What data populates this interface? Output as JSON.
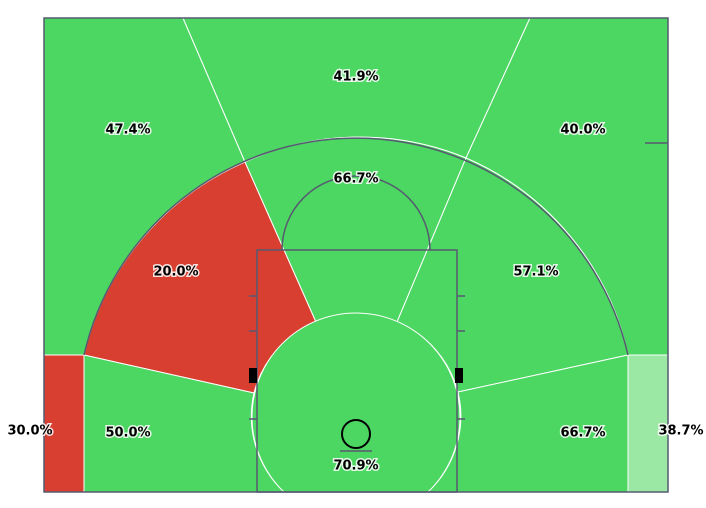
{
  "chart_data": {
    "type": "shot-chart",
    "values": [
      30.0,
      38.7,
      47.4,
      41.9,
      40.0,
      20.0,
      66.7,
      57.1,
      50.0,
      66.7,
      70.9
    ],
    "value_labels": [
      "30.0%",
      "38.7%",
      "47.4%",
      "41.9%",
      "40.0%",
      "20.0%",
      "66.7%",
      "57.1%",
      "50.0%",
      "66.7%",
      "70.9%"
    ],
    "colors": [
      "#d93f30",
      "#9be8a5",
      "#4cd662",
      "#4cd662",
      "#4cd662",
      "#d93f30",
      "#4cd662",
      "#4cd662",
      "#4cd662",
      "#4cd662",
      "#4cd662"
    ]
  }
}
